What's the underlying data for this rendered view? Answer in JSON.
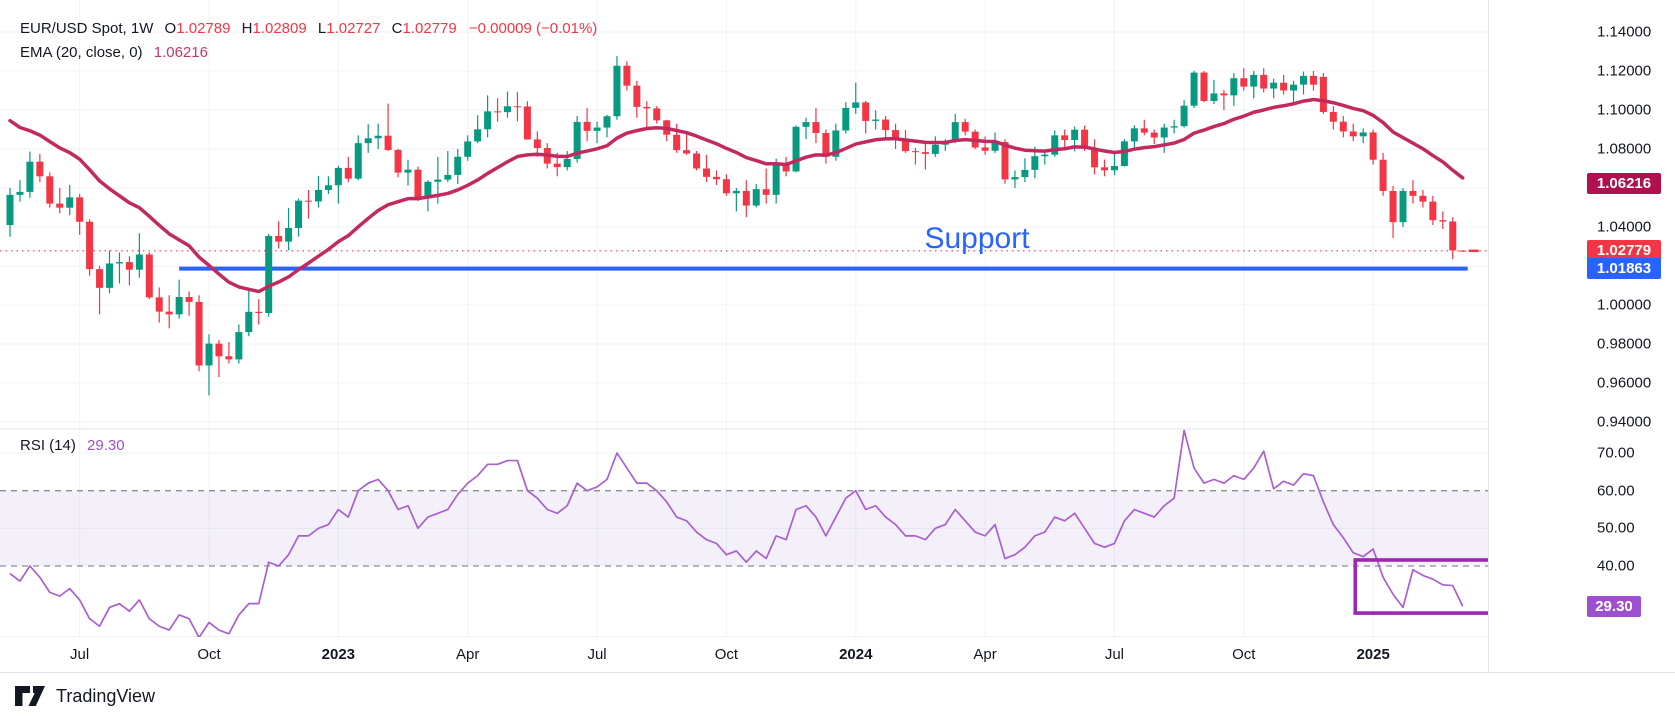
{
  "header": {
    "title": "EUR/USD Spot, 1W",
    "o_label": "O",
    "o_value": "1.02789",
    "h_label": "H",
    "h_value": "1.02809",
    "l_label": "L",
    "l_value": "1.02727",
    "c_label": "C",
    "c_value": "1.02779",
    "change": "−0.00009 (−0.01%)",
    "ema_label": "EMA (20, close, 0)",
    "ema_value": "1.06216"
  },
  "rsi_legend": {
    "label": "RSI (14)",
    "value": "29.30"
  },
  "badges": {
    "ema": {
      "text": "1.06216",
      "color": "#b0104e"
    },
    "last": {
      "text": "1.02779",
      "color": "#f23645"
    },
    "support": {
      "text": "1.01863",
      "color": "#2962ff"
    },
    "rsi": {
      "text": "29.30",
      "color": "#9e4fd1"
    }
  },
  "footer": {
    "brand": "TradingView"
  },
  "chart_data": {
    "type": "candlestick",
    "title": "EUR/USD Spot, 1W",
    "interval": "1W",
    "ylabel": "price",
    "price_ticks": [
      {
        "price": 1.14,
        "label": "1.14000"
      },
      {
        "price": 1.12,
        "label": "1.12000"
      },
      {
        "price": 1.1,
        "label": "1.10000"
      },
      {
        "price": 1.08,
        "label": "1.08000"
      },
      {
        "price": 1.04,
        "label": "1.04000"
      },
      {
        "price": 1.0,
        "label": "1.00000"
      },
      {
        "price": 0.98,
        "label": "0.98000"
      },
      {
        "price": 0.96,
        "label": "0.96000"
      },
      {
        "price": 0.94,
        "label": "0.94000"
      }
    ],
    "price_gridlines": [
      1.14,
      1.12,
      1.1,
      1.08,
      1.06,
      1.04,
      1.02,
      1.0,
      0.98,
      0.96,
      0.94
    ],
    "rsi_ticks": [
      {
        "value": 70,
        "label": "70.00"
      },
      {
        "value": 60,
        "label": "60.00"
      },
      {
        "value": 50,
        "label": "50.00"
      },
      {
        "value": 40,
        "label": "40.00"
      }
    ],
    "rsi_band": {
      "upper": 60,
      "lower": 40,
      "fill": "rgba(126,87,194,0.09)",
      "dash_color": "#8a8e99"
    },
    "x_axis": [
      {
        "label": "Jul",
        "index": 7,
        "bold": false
      },
      {
        "label": "Oct",
        "index": 20,
        "bold": false
      },
      {
        "label": "2023",
        "index": 33,
        "bold": true
      },
      {
        "label": "Apr",
        "index": 46,
        "bold": false
      },
      {
        "label": "Jul",
        "index": 59,
        "bold": false
      },
      {
        "label": "Oct",
        "index": 72,
        "bold": false
      },
      {
        "label": "2024",
        "index": 85,
        "bold": true
      },
      {
        "label": "Apr",
        "index": 98,
        "bold": false
      },
      {
        "label": "Jul",
        "index": 111,
        "bold": false
      },
      {
        "label": "Oct",
        "index": 124,
        "bold": false
      },
      {
        "label": "2025",
        "index": 137,
        "bold": true
      }
    ],
    "colors": {
      "up": "#089981",
      "down": "#f23645",
      "ema": "#c22a5f",
      "rsi_line": "#aa5fd0",
      "grid": "#f0f2f8",
      "priceline": "#f23645"
    },
    "ema": {
      "period": 20,
      "initial": 1.0985,
      "last_value": 1.06216
    },
    "current_price": 1.02779,
    "support": {
      "label": "Support",
      "price": 1.01863,
      "index_from": 17,
      "index_to": 146.5,
      "color": "#2962ff"
    },
    "highlight_box": {
      "index_from": 135.2,
      "index_to": 150,
      "rsi_from": 27.5,
      "rsi_to": 41.6,
      "color": "#9c27b0"
    },
    "rsi": {
      "period": 14,
      "last_value": 29.3,
      "values": [
        38,
        36,
        40,
        37,
        33,
        32,
        34,
        31,
        26,
        24,
        29,
        30,
        28,
        31,
        26,
        24,
        23,
        27,
        26,
        21,
        25,
        23,
        22,
        27,
        30,
        30,
        41,
        40,
        43,
        48,
        48,
        50,
        51,
        55,
        53,
        60,
        62,
        63,
        60,
        55,
        56,
        50,
        53,
        54,
        55,
        59,
        62,
        64,
        67,
        67,
        68,
        68,
        60,
        58,
        55,
        54,
        56,
        62,
        60,
        61,
        63,
        70,
        66,
        62,
        62,
        60,
        57,
        53,
        52,
        49,
        47,
        46,
        43,
        44,
        41,
        44,
        42,
        48,
        47,
        55,
        56,
        53,
        48,
        53,
        58,
        60,
        55,
        56,
        53,
        51,
        48,
        48,
        47,
        50,
        51,
        55,
        52,
        49,
        48,
        51,
        42,
        43,
        45,
        48,
        49,
        53,
        52,
        54,
        50,
        46,
        45,
        46,
        52,
        55,
        54,
        53,
        56,
        58,
        76,
        66,
        62,
        63,
        62,
        64,
        63,
        66,
        70.5,
        60.5,
        62.5,
        61.5,
        64.5,
        64,
        57,
        51,
        47.5,
        43.5,
        42.5,
        44.5,
        37,
        32.5,
        29,
        39,
        37.5,
        36.5,
        35,
        34.8,
        29.3
      ]
    },
    "candles": [
      [
        1.041,
        1.06,
        1.035,
        1.0565
      ],
      [
        1.0565,
        1.064,
        1.053,
        1.058
      ],
      [
        1.058,
        1.0787,
        1.055,
        1.0735
      ],
      [
        1.0735,
        1.0774,
        1.063,
        1.066
      ],
      [
        1.066,
        1.068,
        1.05,
        1.052
      ],
      [
        1.052,
        1.06,
        1.047,
        1.0499
      ],
      [
        1.0499,
        1.0615,
        1.046,
        1.0552
      ],
      [
        1.0552,
        1.057,
        1.036,
        1.0427
      ],
      [
        1.0427,
        1.044,
        1.015,
        1.0184
      ],
      [
        1.0184,
        1.02,
        0.9952,
        1.0088
      ],
      [
        1.0088,
        1.028,
        1.006,
        1.0213
      ],
      [
        1.0213,
        1.027,
        1.011,
        1.022
      ],
      [
        1.022,
        1.025,
        1.01,
        1.0181
      ],
      [
        1.0181,
        1.0368,
        1.014,
        1.0259
      ],
      [
        1.0259,
        1.027,
        1.003,
        1.0039
      ],
      [
        1.0039,
        1.009,
        0.991,
        0.9966
      ],
      [
        0.9966,
        1.005,
        0.988,
        0.9952
      ],
      [
        0.9952,
        1.013,
        0.993,
        1.0041
      ],
      [
        1.0041,
        1.007,
        0.9945,
        1.0016
      ],
      [
        1.0016,
        1.005,
        0.966,
        0.969
      ],
      [
        0.969,
        0.985,
        0.9536,
        0.9802
      ],
      [
        0.9802,
        0.982,
        0.963,
        0.9737
      ],
      [
        0.9737,
        0.981,
        0.97,
        0.9721
      ],
      [
        0.9721,
        0.99,
        0.97,
        0.9861
      ],
      [
        0.9861,
        1.009,
        0.984,
        0.9965
      ],
      [
        0.9965,
        1.003,
        0.99,
        0.9959
      ],
      [
        0.9959,
        1.0364,
        0.994,
        1.0354
      ],
      [
        1.0354,
        1.043,
        1.029,
        1.0325
      ],
      [
        1.0325,
        1.0497,
        1.028,
        1.0395
      ],
      [
        1.0395,
        1.0545,
        1.035,
        1.0535
      ],
      [
        1.0535,
        1.059,
        1.0443,
        1.0531
      ],
      [
        1.0531,
        1.0662,
        1.05,
        1.059
      ],
      [
        1.059,
        1.066,
        1.057,
        1.0614
      ],
      [
        1.0614,
        1.0713,
        1.052,
        1.0703
      ],
      [
        1.0703,
        1.076,
        1.063,
        1.0648
      ],
      [
        1.0648,
        1.087,
        1.064,
        1.083
      ],
      [
        1.083,
        1.0927,
        1.078,
        1.0855
      ],
      [
        1.0855,
        1.093,
        1.08,
        1.0868
      ],
      [
        1.0868,
        1.1033,
        1.079,
        1.0795
      ],
      [
        1.0795,
        1.08,
        1.0655,
        1.0679
      ],
      [
        1.0679,
        1.0745,
        1.0612,
        1.0694
      ],
      [
        1.0694,
        1.071,
        1.0533,
        1.0546
      ],
      [
        1.0546,
        1.064,
        1.048,
        1.0632
      ],
      [
        1.0632,
        1.076,
        1.052,
        1.0643
      ],
      [
        1.0643,
        1.079,
        1.063,
        1.0667
      ],
      [
        1.0667,
        1.08,
        1.062,
        1.076
      ],
      [
        1.076,
        1.087,
        1.074,
        1.0839
      ],
      [
        1.0839,
        1.0973,
        1.083,
        1.0901
      ],
      [
        1.0901,
        1.1075,
        1.086,
        1.0993
      ],
      [
        1.0993,
        1.106,
        1.094,
        1.0989
      ],
      [
        1.0989,
        1.1095,
        1.096,
        1.1019
      ],
      [
        1.1019,
        1.1092,
        1.0942,
        1.1018
      ],
      [
        1.1018,
        1.1045,
        1.0848,
        1.0849
      ],
      [
        1.0849,
        1.089,
        1.076,
        1.0805
      ],
      [
        1.0805,
        1.083,
        1.07,
        1.0725
      ],
      [
        1.0725,
        1.078,
        1.066,
        1.0707
      ],
      [
        1.0707,
        1.079,
        1.069,
        1.0749
      ],
      [
        1.0749,
        1.097,
        1.073,
        1.0939
      ],
      [
        1.0939,
        1.101,
        1.084,
        1.0893
      ],
      [
        1.0893,
        1.094,
        1.083,
        1.091
      ],
      [
        1.091,
        1.0975,
        1.086,
        1.0968
      ],
      [
        1.0968,
        1.1276,
        1.095,
        1.1227
      ],
      [
        1.1227,
        1.125,
        1.11,
        1.1125
      ],
      [
        1.1125,
        1.115,
        1.096,
        1.1016
      ],
      [
        1.1016,
        1.1045,
        1.091,
        1.1008
      ],
      [
        1.1008,
        1.102,
        1.093,
        1.0947
      ],
      [
        1.0947,
        1.095,
        1.084,
        1.0873
      ],
      [
        1.0873,
        1.093,
        1.078,
        1.0794
      ],
      [
        1.0794,
        1.088,
        1.077,
        1.0777
      ],
      [
        1.0777,
        1.079,
        1.069,
        1.07
      ],
      [
        1.07,
        1.077,
        1.063,
        1.0657
      ],
      [
        1.0657,
        1.069,
        1.0615,
        1.0645
      ],
      [
        1.0645,
        1.067,
        1.056,
        1.0573
      ],
      [
        1.0573,
        1.06,
        1.048,
        1.0585
      ],
      [
        1.0585,
        1.064,
        1.045,
        1.051
      ],
      [
        1.051,
        1.062,
        1.05,
        1.0594
      ],
      [
        1.0594,
        1.07,
        1.052,
        1.0565
      ],
      [
        1.0565,
        1.075,
        1.052,
        1.0728
      ],
      [
        1.0728,
        1.076,
        1.066,
        1.0685
      ],
      [
        1.0685,
        1.092,
        1.068,
        1.0914
      ],
      [
        1.0914,
        1.096,
        1.085,
        1.0938
      ],
      [
        1.0938,
        1.101,
        1.083,
        1.0882
      ],
      [
        1.0882,
        1.09,
        1.0725,
        1.076
      ],
      [
        1.076,
        1.093,
        1.074,
        1.0895
      ],
      [
        1.0895,
        1.104,
        1.088,
        1.1011
      ],
      [
        1.1011,
        1.114,
        1.098,
        1.1039
      ],
      [
        1.1039,
        1.1046,
        1.088,
        1.0944
      ],
      [
        1.0944,
        1.0998,
        1.09,
        1.0951
      ],
      [
        1.0951,
        1.097,
        1.0845,
        1.0897
      ],
      [
        1.0897,
        1.093,
        1.08,
        1.0854
      ],
      [
        1.0854,
        1.0898,
        1.078,
        1.0789
      ],
      [
        1.0789,
        1.0805,
        1.072,
        1.0784
      ],
      [
        1.0784,
        1.084,
        1.0695,
        1.0775
      ],
      [
        1.0775,
        1.0865,
        1.076,
        1.0822
      ],
      [
        1.0822,
        1.085,
        1.079,
        1.0838
      ],
      [
        1.0838,
        1.098,
        1.083,
        1.0938
      ],
      [
        1.0938,
        1.0955,
        1.087,
        1.0889
      ],
      [
        1.0889,
        1.09,
        1.08,
        1.0808
      ],
      [
        1.0808,
        1.0864,
        1.077,
        1.0791
      ],
      [
        1.0791,
        1.0885,
        1.078,
        1.0836
      ],
      [
        1.0836,
        1.085,
        1.0622,
        1.0644
      ],
      [
        1.0644,
        1.069,
        1.06,
        1.0656
      ],
      [
        1.0656,
        1.0752,
        1.063,
        1.0693
      ],
      [
        1.0693,
        1.0812,
        1.065,
        1.0763
      ],
      [
        1.0763,
        1.079,
        1.072,
        1.0771
      ],
      [
        1.0771,
        1.0895,
        1.076,
        1.087
      ],
      [
        1.087,
        1.09,
        1.0805,
        1.0846
      ],
      [
        1.0846,
        1.0915,
        1.0788,
        1.0899
      ],
      [
        1.0899,
        1.092,
        1.079,
        1.0801
      ],
      [
        1.0801,
        1.085,
        1.067,
        1.0706
      ],
      [
        1.0706,
        1.0746,
        1.066,
        1.0691
      ],
      [
        1.0691,
        1.0776,
        1.0666,
        1.0713
      ],
      [
        1.0713,
        1.085,
        1.071,
        1.0839
      ],
      [
        1.0839,
        1.0922,
        1.08,
        1.0906
      ],
      [
        1.0906,
        1.095,
        1.087,
        1.0884
      ],
      [
        1.0884,
        1.09,
        1.0825,
        1.0859
      ],
      [
        1.0859,
        1.093,
        1.078,
        1.091
      ],
      [
        1.091,
        1.095,
        1.088,
        1.0917
      ],
      [
        1.0917,
        1.105,
        1.091,
        1.1022
      ],
      [
        1.1022,
        1.1201,
        1.101,
        1.1192
      ],
      [
        1.1192,
        1.12,
        1.104,
        1.1046
      ],
      [
        1.1046,
        1.1155,
        1.103,
        1.1085
      ],
      [
        1.1085,
        1.1102,
        1.1,
        1.1075
      ],
      [
        1.1075,
        1.1189,
        1.102,
        1.1163
      ],
      [
        1.1163,
        1.1214,
        1.11,
        1.112
      ],
      [
        1.112,
        1.12,
        1.106,
        1.118
      ],
      [
        1.118,
        1.1214,
        1.109,
        1.111
      ],
      [
        1.111,
        1.116,
        1.106,
        1.114
      ],
      [
        1.114,
        1.118,
        1.108,
        1.11
      ],
      [
        1.11,
        1.115,
        1.104,
        1.113
      ],
      [
        1.113,
        1.1197,
        1.108,
        1.1175
      ],
      [
        1.1175,
        1.12,
        1.11,
        1.113
      ],
      [
        1.117,
        1.119,
        1.098,
        1.099
      ],
      [
        1.099,
        1.102,
        1.09,
        1.094
      ],
      [
        1.094,
        1.097,
        1.086,
        1.089
      ],
      [
        1.089,
        1.093,
        1.084,
        1.0865
      ],
      [
        1.0865,
        1.0905,
        1.083,
        1.0885
      ],
      [
        1.0885,
        1.09,
        1.072,
        1.0745
      ],
      [
        1.0745,
        1.078,
        1.056,
        1.0585
      ],
      [
        1.0585,
        1.061,
        1.0344,
        1.0425
      ],
      [
        1.0425,
        1.06,
        1.04,
        1.0585
      ],
      [
        1.0585,
        1.064,
        1.052,
        1.056
      ],
      [
        1.056,
        1.059,
        1.05,
        1.053
      ],
      [
        1.053,
        1.056,
        1.041,
        1.0435
      ],
      [
        1.0435,
        1.048,
        1.039,
        1.0428
      ],
      [
        1.0428,
        1.045,
        1.0235,
        1.028
      ],
      [
        1.02789,
        1.02809,
        1.02727,
        1.02779
      ]
    ]
  }
}
